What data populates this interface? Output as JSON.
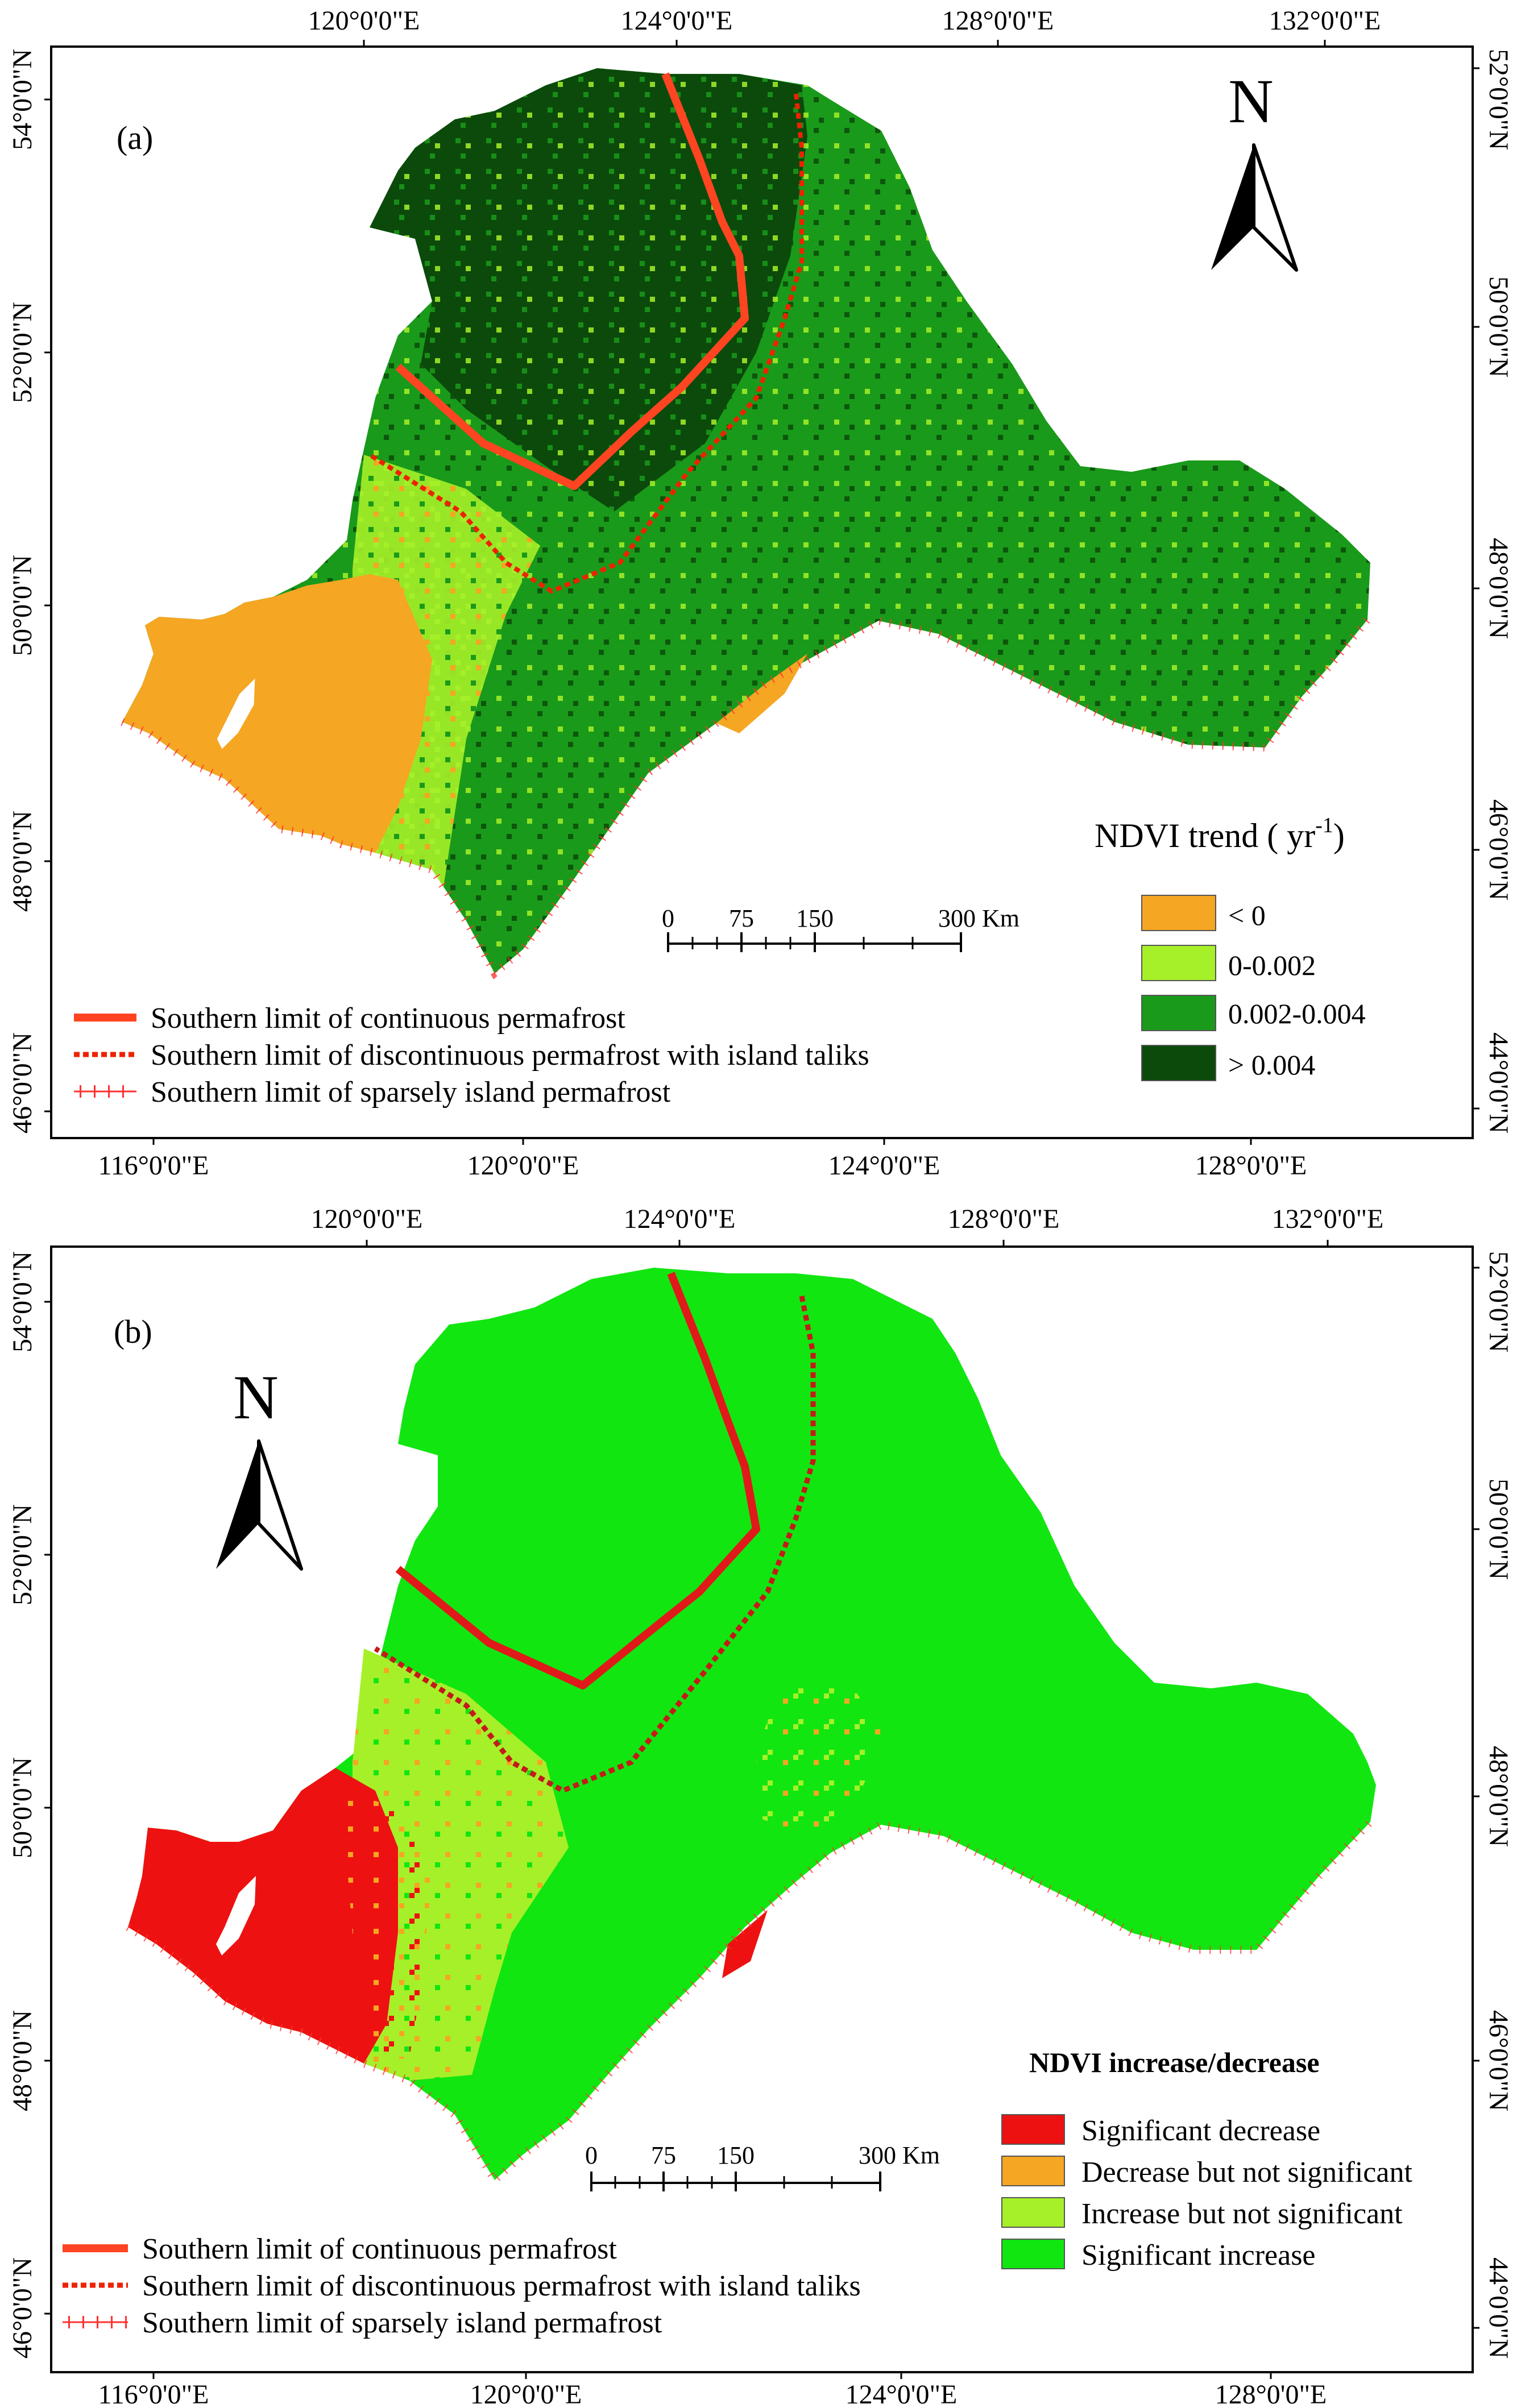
{
  "figure": {
    "panels": [
      {
        "label": "(a)",
        "north_arrow": "N",
        "top_ticks": [
          "120°0'0\"E",
          "124°0'0\"E",
          "128°0'0\"E",
          "132°0'0\"E"
        ],
        "bottom_ticks": [
          "116°0'0\"E",
          "120°0'0\"E",
          "124°0'0\"E",
          "128°0'0\"E"
        ],
        "left_ticks": [
          "54°0'0\"N",
          "52°0'0\"N",
          "50°0'0\"N",
          "48°0'0\"N",
          "46°0'0\"N"
        ],
        "right_ticks": [
          "52°0'0\"N",
          "50°0'0\"N",
          "48°0'0\"N",
          "46°0'0\"N",
          "44°0'0\"N"
        ],
        "scale_bar": {
          "labels": [
            "0",
            "75",
            "150",
            "300 Km"
          ]
        },
        "legend": {
          "title": "NDVI  trend ( yr",
          "title_sup": "-1",
          "title_close": ")",
          "items": [
            {
              "label": "< 0",
              "color": "#f5a623"
            },
            {
              "label": "0-0.002",
              "color": "#a6f029"
            },
            {
              "label": "0.002-0.004",
              "color": "#1a9a1a"
            },
            {
              "label": "> 0.004",
              "color": "#0b4a0b"
            }
          ]
        },
        "line_legend": [
          {
            "label": "Southern limit of continuous  permafrost",
            "style": "solid"
          },
          {
            "label": "Southern limit of discontinuous  permafrost with island taliks",
            "style": "dashed"
          },
          {
            "label": "Southern limit of sparsely island permafrost",
            "style": "crosses"
          }
        ]
      },
      {
        "label": "(b)",
        "north_arrow": "N",
        "top_ticks": [
          "120°0'0\"E",
          "124°0'0\"E",
          "128°0'0\"E",
          "132°0'0\"E"
        ],
        "bottom_ticks": [
          "116°0'0\"E",
          "120°0'0\"E",
          "124°0'0\"E",
          "128°0'0\"E"
        ],
        "left_ticks": [
          "54°0'0\"N",
          "52°0'0\"N",
          "50°0'0\"N",
          "48°0'0\"N",
          "46°0'0\"N"
        ],
        "right_ticks": [
          "52°0'0\"N",
          "50°0'0\"N",
          "48°0'0\"N",
          "46°0'0\"N",
          "44°0'0\"N"
        ],
        "scale_bar": {
          "labels": [
            "0",
            "75",
            "150",
            "300 Km"
          ]
        },
        "legend": {
          "title": "NDVI increase/decrease",
          "items": [
            {
              "label": "Significant decrease",
              "color": "#ee1111"
            },
            {
              "label": "Decrease but not significant",
              "color": "#f5a623"
            },
            {
              "label": "Increase but not significant",
              "color": "#a6f029"
            },
            {
              "label": "Significant increase",
              "color": "#11e611"
            }
          ]
        },
        "line_legend": [
          {
            "label": "Southern limit of continuous  permafrost",
            "style": "solid"
          },
          {
            "label": "Southern limit of discontinuous  permafrost with island taliks",
            "style": "dashed"
          },
          {
            "label": "Southern limit of sparsely island permafrost",
            "style": "crosses"
          }
        ]
      }
    ],
    "colors": {
      "boundary_line": "#ff4422",
      "panel_b_boundary": "#e01a1a",
      "crosses": "#ff3333"
    }
  }
}
